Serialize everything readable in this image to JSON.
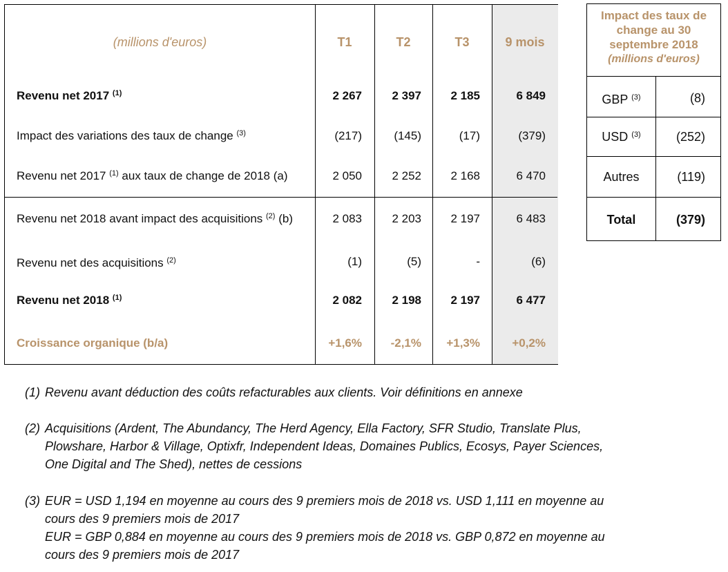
{
  "main_table": {
    "unit_label": "(millions d'euros)",
    "columns": [
      "T1",
      "T2",
      "T3",
      "9 mois"
    ],
    "rows": [
      {
        "label": "Revenu net 2017",
        "sup": "(1)",
        "suffix": "",
        "values": [
          "2 267",
          "2 397",
          "2 185",
          "6 849"
        ]
      },
      {
        "label": "Impact des variations des taux de change",
        "sup": "(3)",
        "suffix": "",
        "values": [
          "(217)",
          "(145)",
          "(17)",
          "(379)"
        ]
      },
      {
        "label": "Revenu net 2017",
        "sup": "(1)",
        "suffix": "aux taux de change de 2018 (a)",
        "values": [
          "2 050",
          "2 252",
          "2 168",
          "6 470"
        ]
      },
      {
        "label": "Revenu net 2018 avant impact des acquisitions",
        "sup": "(2)",
        "suffix": "(b)",
        "values": [
          "2 083",
          "2 203",
          "2 197",
          "6 483"
        ]
      },
      {
        "label": "Revenu net des acquisitions",
        "sup": "(2)",
        "suffix": "",
        "values": [
          "(1)",
          "(5)",
          "-",
          "(6)"
        ]
      },
      {
        "label": "Revenu net 2018",
        "sup": "(1)",
        "suffix": "",
        "values": [
          "2 082",
          "2 198",
          "2 197",
          "6 477"
        ]
      },
      {
        "label": "Croissance organique (b/a)",
        "sup": "",
        "suffix": "",
        "values": [
          "+1,6%",
          "-2,1%",
          "+1,3%",
          "+0,2%"
        ]
      }
    ]
  },
  "side_table": {
    "title_lines": [
      "Impact des taux de",
      "change au 30",
      "septembre 2018"
    ],
    "subtitle": "(millions d'euros)",
    "rows": [
      {
        "label": "GBP",
        "sup": "(3)",
        "value": "(8)"
      },
      {
        "label": "USD",
        "sup": "(3)",
        "value": "(252)"
      },
      {
        "label": "Autres",
        "sup": "",
        "value": "(119)"
      },
      {
        "label": "Total",
        "sup": "",
        "value": "(379)"
      }
    ]
  },
  "footnotes": [
    {
      "num": "(1)",
      "lines": [
        "Revenu avant déduction des coûts refacturables aux clients. Voir définitions en annexe"
      ]
    },
    {
      "num": "(2)",
      "lines": [
        "Acquisitions (Ardent, The Abundancy, The Herd Agency, Ella Factory, SFR Studio, Translate Plus,",
        "Plowshare, Harbor & Village, Optixfr, Independent Ideas, Domaines Publics, Ecosys, Payer Sciences,",
        "One Digital and The Shed), nettes de cessions"
      ]
    },
    {
      "num": "(3)",
      "lines": [
        "EUR = USD 1,194 en moyenne au cours des 9 premiers mois de 2018 vs. USD 1,111 en moyenne au",
        "cours des 9 premiers mois de 2017",
        "EUR = GBP 0,884 en moyenne au cours des 9 premiers mois de 2018 vs. GBP 0,872 en moyenne au",
        "cours des 9 premiers mois de 2017"
      ]
    }
  ],
  "colors": {
    "accent_gold": "#b8936a",
    "shade_gray": "#ebebeb",
    "border": "#000000"
  }
}
